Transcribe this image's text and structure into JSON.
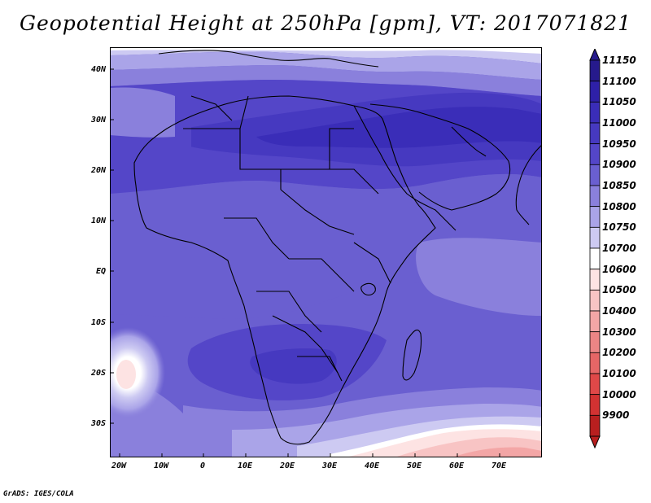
{
  "title": "Geopotential Height at 250hPa [gpm], VT: 2017071821",
  "footer": "GrADS: IGES/COLA",
  "axes": {
    "y_labels": [
      "40N",
      "30N",
      "20N",
      "10N",
      "EQ",
      "10S",
      "20S",
      "30S"
    ],
    "x_labels": [
      "20W",
      "10W",
      "0",
      "10E",
      "20E",
      "30E",
      "40E",
      "50E",
      "60E",
      "70E"
    ]
  },
  "colorbar": {
    "levels": [
      "11150",
      "11100",
      "11050",
      "11000",
      "10950",
      "10900",
      "10850",
      "10800",
      "10750",
      "10700",
      "10600",
      "10500",
      "10400",
      "10300",
      "10200",
      "10100",
      "10000",
      "9900"
    ],
    "colors": [
      "#261a8c",
      "#2e20a8",
      "#3a2db8",
      "#4639c0",
      "#5446c8",
      "#6a5fd0",
      "#8a80dc",
      "#aaa4e8",
      "#cdcaf2",
      "#ffffff",
      "#fde3e3",
      "#f8c4c4",
      "#f3a6a6",
      "#ec8585",
      "#e66666",
      "#df4848",
      "#d23232",
      "#b81f1f"
    ]
  },
  "map": {
    "region": "Africa and Middle East",
    "lon_range": [
      -25,
      80
    ],
    "lat_range": [
      -37,
      45
    ]
  }
}
